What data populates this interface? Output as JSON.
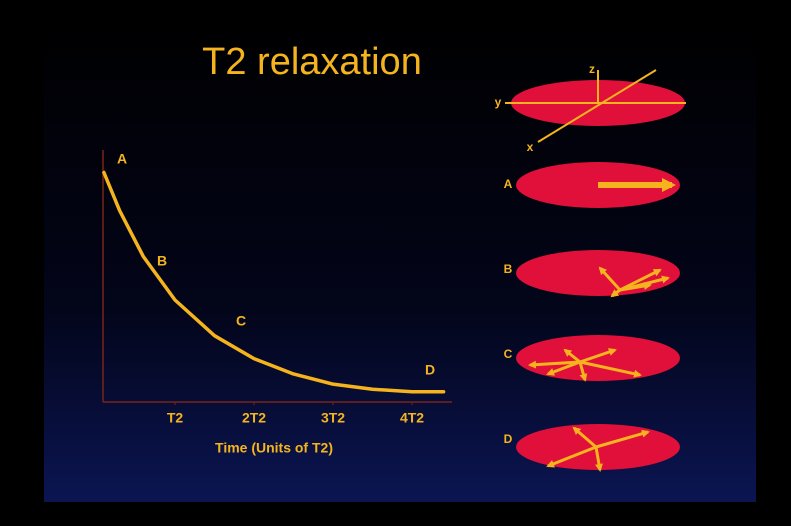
{
  "chart_data": {
    "type": "line",
    "title": "T2 relaxation",
    "x_label": "Time (Units of T2)",
    "x": [
      0.1,
      0.3,
      0.6,
      1,
      1.5,
      2,
      2.5,
      3,
      3.5,
      4,
      4.4
    ],
    "values": [
      0.9,
      0.75,
      0.57,
      0.4,
      0.26,
      0.17,
      0.11,
      0.07,
      0.05,
      0.04,
      0.04
    ],
    "color": "#f5b41e",
    "xlim": [
      0,
      4.5
    ],
    "ylim": [
      0,
      1
    ],
    "xticks": [
      {
        "value": 1,
        "label": "T2"
      },
      {
        "value": 2,
        "label": "2T2"
      },
      {
        "value": 3,
        "label": "3T2"
      },
      {
        "value": 4,
        "label": "4T2"
      }
    ],
    "annotations": [
      "A",
      "B",
      "C",
      "D"
    ]
  },
  "diagram": {
    "axis_labels": [
      "z",
      "y",
      "x"
    ],
    "rows": [
      "A",
      "B",
      "C",
      "D"
    ]
  }
}
